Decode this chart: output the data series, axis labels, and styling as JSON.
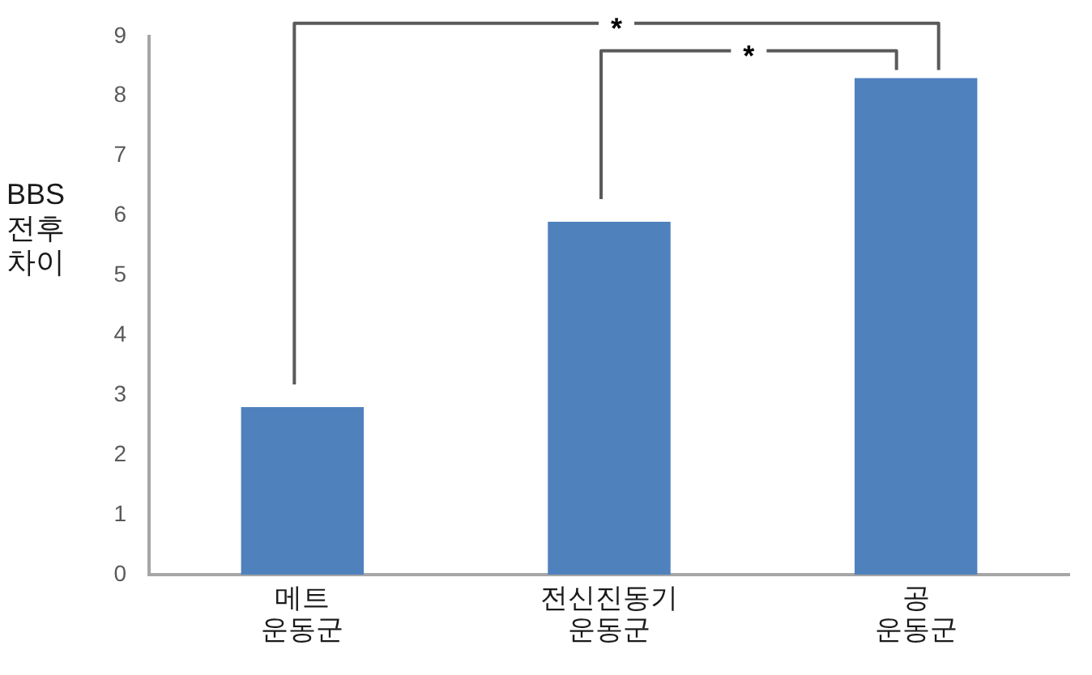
{
  "chart_data": {
    "type": "bar",
    "ylabel": "BBS\n전후\n차이",
    "categories": [
      "메트\n운동군",
      "전신진동기\n운동군",
      "공\n운동군"
    ],
    "values": [
      2.8,
      5.9,
      8.3
    ],
    "color": "#4f81bd",
    "ylim": [
      0,
      9
    ],
    "yticks": [
      0,
      1,
      2,
      3,
      4,
      5,
      6,
      7,
      8,
      9
    ],
    "annotations": [
      "*",
      "*"
    ]
  }
}
